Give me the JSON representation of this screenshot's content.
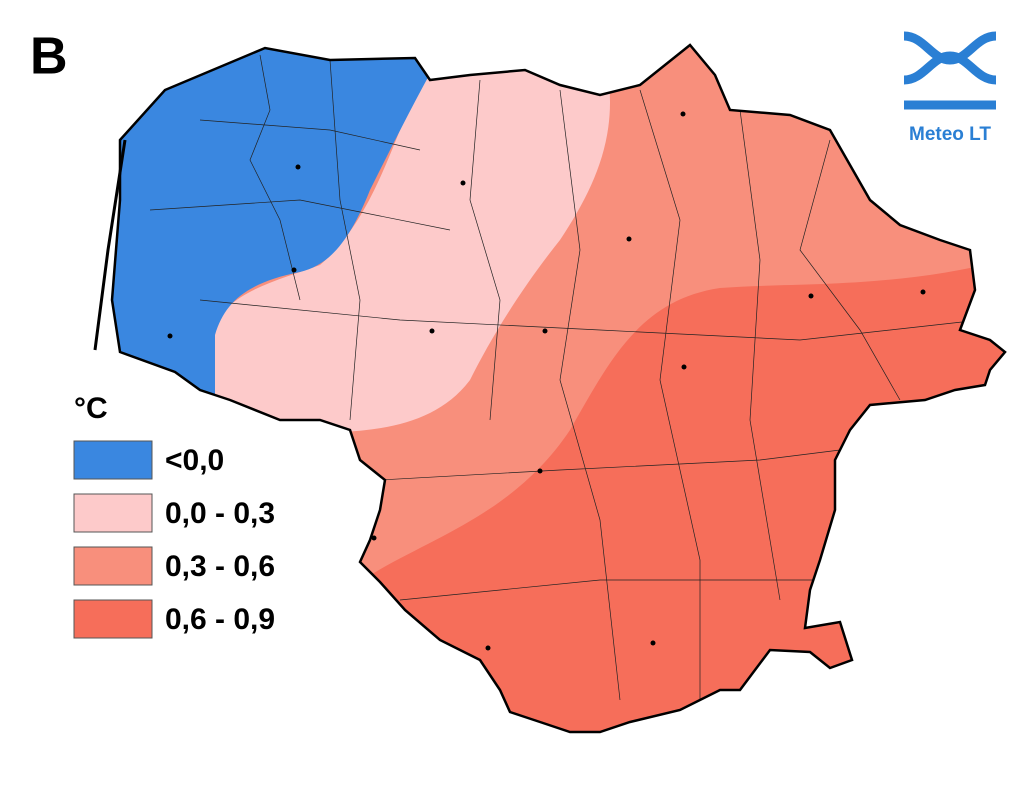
{
  "panel_label": "B",
  "legend": {
    "title": "°C",
    "items": [
      {
        "label": "<0,0",
        "color": "#3a87e0"
      },
      {
        "label": "0,0 - 0,3",
        "color": "#fdcaca"
      },
      {
        "label": "0,3 - 0,6",
        "color": "#f88f7c"
      },
      {
        "label": "0,6 - 0,9",
        "color": "#f66e5a"
      }
    ]
  },
  "logo": {
    "text": "Meteo LT",
    "color": "#2a7fd4"
  }
}
